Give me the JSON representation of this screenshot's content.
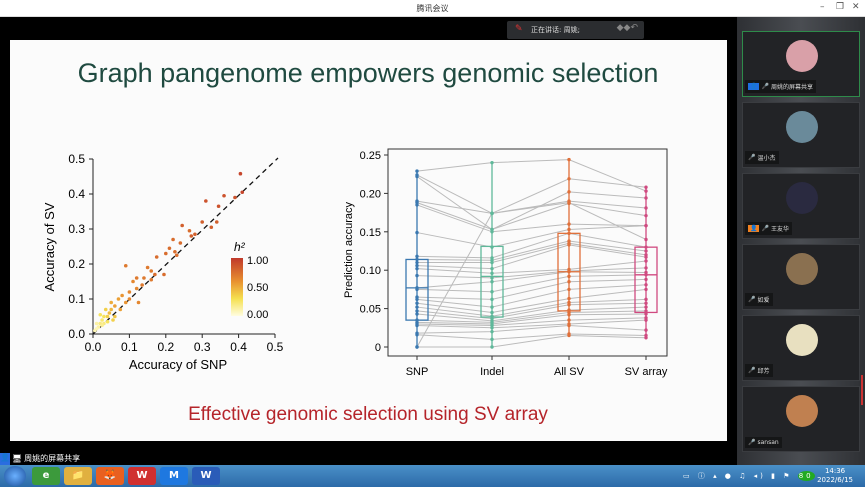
{
  "window": {
    "title": "腾讯会议",
    "minimize": "–",
    "restore": "❐",
    "close": "✕"
  },
  "speaker": {
    "label": "正在讲话: 周姚;"
  },
  "slide": {
    "title": "Graph pangenome empowers genomic selection",
    "subtitle": "Effective genomic selection using SV array"
  },
  "share_bar": {
    "label": "周姚的屏幕共享"
  },
  "participants": [
    {
      "name": "周姚的屏幕共享",
      "avatar": "#d9a0a8",
      "active": true,
      "badge": "host"
    },
    {
      "name": "温小杰",
      "avatar": "#6a8a9a"
    },
    {
      "name": "王友华",
      "avatar": "#2a2a40",
      "badge": "cohost"
    },
    {
      "name": "如爱",
      "avatar": "#8a7050"
    },
    {
      "name": "邱芳",
      "avatar": "#e8e0c0"
    },
    {
      "name": "sansan",
      "avatar": "#c08050"
    }
  ],
  "taskbar": {
    "apps": [
      "e",
      "📁",
      "🦊",
      "W",
      "M",
      "W"
    ],
    "time": "14:36",
    "date": "2022/6/15",
    "tray_badge": "80"
  },
  "chart_data": [
    {
      "type": "scatter",
      "xlabel": "Accuracy of SNP",
      "ylabel": "Accuracy of SV",
      "xlim": [
        0,
        0.5
      ],
      "ylim": [
        0,
        0.5
      ],
      "xticks": [
        "0.0",
        "0.1",
        "0.2",
        "0.3",
        "0.4",
        "0.5"
      ],
      "yticks": [
        "0.0",
        "0.1",
        "0.2",
        "0.3",
        "0.4",
        "0.5"
      ],
      "reference_line": "y = x (dashed)",
      "legend": {
        "title": "h²",
        "labels": [
          "1.00",
          "0.50",
          "0.00"
        ],
        "placement": "right"
      },
      "points": [
        [
          0.405,
          0.458,
          0.95
        ],
        [
          0.41,
          0.405,
          0.95
        ],
        [
          0.39,
          0.39,
          0.9
        ],
        [
          0.36,
          0.395,
          0.9
        ],
        [
          0.345,
          0.365,
          0.9
        ],
        [
          0.31,
          0.38,
          0.9
        ],
        [
          0.3,
          0.32,
          0.85
        ],
        [
          0.325,
          0.305,
          0.85
        ],
        [
          0.34,
          0.32,
          0.85
        ],
        [
          0.245,
          0.31,
          0.85
        ],
        [
          0.27,
          0.28,
          0.85
        ],
        [
          0.265,
          0.295,
          0.8
        ],
        [
          0.24,
          0.26,
          0.8
        ],
        [
          0.22,
          0.27,
          0.8
        ],
        [
          0.225,
          0.235,
          0.8
        ],
        [
          0.21,
          0.245,
          0.8
        ],
        [
          0.23,
          0.225,
          0.8
        ],
        [
          0.2,
          0.23,
          0.8
        ],
        [
          0.175,
          0.22,
          0.8
        ],
        [
          0.195,
          0.17,
          0.8
        ],
        [
          0.09,
          0.195,
          0.75
        ],
        [
          0.16,
          0.18,
          0.75
        ],
        [
          0.15,
          0.19,
          0.75
        ],
        [
          0.16,
          0.155,
          0.75
        ],
        [
          0.14,
          0.16,
          0.75
        ],
        [
          0.12,
          0.16,
          0.75
        ],
        [
          0.11,
          0.15,
          0.7
        ],
        [
          0.1,
          0.12,
          0.7
        ],
        [
          0.12,
          0.13,
          0.7
        ],
        [
          0.125,
          0.09,
          0.7
        ],
        [
          0.1,
          0.1,
          0.7
        ],
        [
          0.08,
          0.11,
          0.65
        ],
        [
          0.09,
          0.09,
          0.65
        ],
        [
          0.07,
          0.1,
          0.6
        ],
        [
          0.06,
          0.08,
          0.6
        ],
        [
          0.075,
          0.07,
          0.6
        ],
        [
          0.05,
          0.09,
          0.55
        ],
        [
          0.05,
          0.07,
          0.5
        ],
        [
          0.045,
          0.06,
          0.5
        ],
        [
          0.06,
          0.05,
          0.45
        ],
        [
          0.04,
          0.05,
          0.4
        ],
        [
          0.035,
          0.07,
          0.4
        ],
        [
          0.03,
          0.05,
          0.3
        ],
        [
          0.025,
          0.04,
          0.25
        ],
        [
          0.02,
          0.03,
          0.2
        ],
        [
          0.03,
          0.03,
          0.2
        ],
        [
          0.015,
          0.02,
          0.1
        ],
        [
          0.01,
          0.015,
          0.05
        ],
        [
          0.02,
          0.055,
          0.3
        ],
        [
          0.04,
          0.035,
          0.3
        ],
        [
          0.01,
          0.03,
          0.1
        ],
        [
          0.005,
          0.01,
          0.05
        ],
        [
          0.025,
          0.025,
          0.15
        ],
        [
          0.055,
          0.04,
          0.4
        ],
        [
          0.135,
          0.14,
          0.75
        ],
        [
          0.17,
          0.17,
          0.8
        ],
        [
          0.28,
          0.285,
          0.85
        ]
      ]
    },
    {
      "type": "box",
      "ylabel": "Prediction accuracy",
      "ylim": [
        0,
        0.25
      ],
      "yticks": [
        "0",
        "0.05",
        "0.10",
        "0.15",
        "0.20",
        "0.25"
      ],
      "categories": [
        "SNP",
        "Indel",
        "All SV",
        "SV array"
      ],
      "colors": [
        "#3a78b0",
        "#5fb89a",
        "#e0703a",
        "#d04a80"
      ],
      "boxes": [
        {
          "min": 0,
          "q1": 0.035,
          "median": 0.077,
          "q3": 0.114,
          "max": 0.229
        },
        {
          "min": 0,
          "q1": 0.039,
          "median": 0.092,
          "q3": 0.131,
          "max": 0.24
        },
        {
          "min": 0.015,
          "q1": 0.047,
          "median": 0.098,
          "q3": 0.148,
          "max": 0.244
        },
        {
          "min": 0.012,
          "q1": 0.045,
          "median": 0.094,
          "q3": 0.13,
          "max": 0.208
        }
      ],
      "paired": [
        [
          0.229,
          0.24,
          0.244,
          0.203
        ],
        [
          0.224,
          0.174,
          0.219,
          0.208
        ],
        [
          0.222,
          0.153,
          0.202,
          0.194
        ],
        [
          0.19,
          0.174,
          0.19,
          0.181
        ],
        [
          0.188,
          0.153,
          0.187,
          0.171
        ],
        [
          0.185,
          0.15,
          0.16,
          0.158
        ],
        [
          0.149,
          0.13,
          0.153,
          0.158
        ],
        [
          0.118,
          0.116,
          0.148,
          0.13
        ],
        [
          0.114,
          0.113,
          0.138,
          0.125
        ],
        [
          0.11,
          0.11,
          0.135,
          0.12
        ],
        [
          0.106,
          0.102,
          0.133,
          0.117
        ],
        [
          0.102,
          0.096,
          0.101,
          0.112
        ],
        [
          0.093,
          0.09,
          0.099,
          0.103
        ],
        [
          0.077,
          0.085,
          0.098,
          0.097
        ],
        [
          0.075,
          0.072,
          0.092,
          0.094
        ],
        [
          0.065,
          0.062,
          0.085,
          0.088
        ],
        [
          0.062,
          0.052,
          0.075,
          0.081
        ],
        [
          0.057,
          0.045,
          0.063,
          0.075
        ],
        [
          0.052,
          0.04,
          0.058,
          0.062
        ],
        [
          0.047,
          0.037,
          0.055,
          0.057
        ],
        [
          0.043,
          0.034,
          0.048,
          0.052
        ],
        [
          0.035,
          0.032,
          0.045,
          0.047
        ],
        [
          0.032,
          0.03,
          0.042,
          0.043
        ],
        [
          0.03,
          0.028,
          0.035,
          0.038
        ],
        [
          0.028,
          0.025,
          0.03,
          0.035
        ],
        [
          0.018,
          0.02,
          0.028,
          0.022
        ],
        [
          0.016,
          0.01,
          0.017,
          0.015
        ],
        [
          0,
          0.174,
          0.188,
          0.14
        ],
        [
          0,
          0,
          0.015,
          0.012
        ]
      ]
    }
  ]
}
